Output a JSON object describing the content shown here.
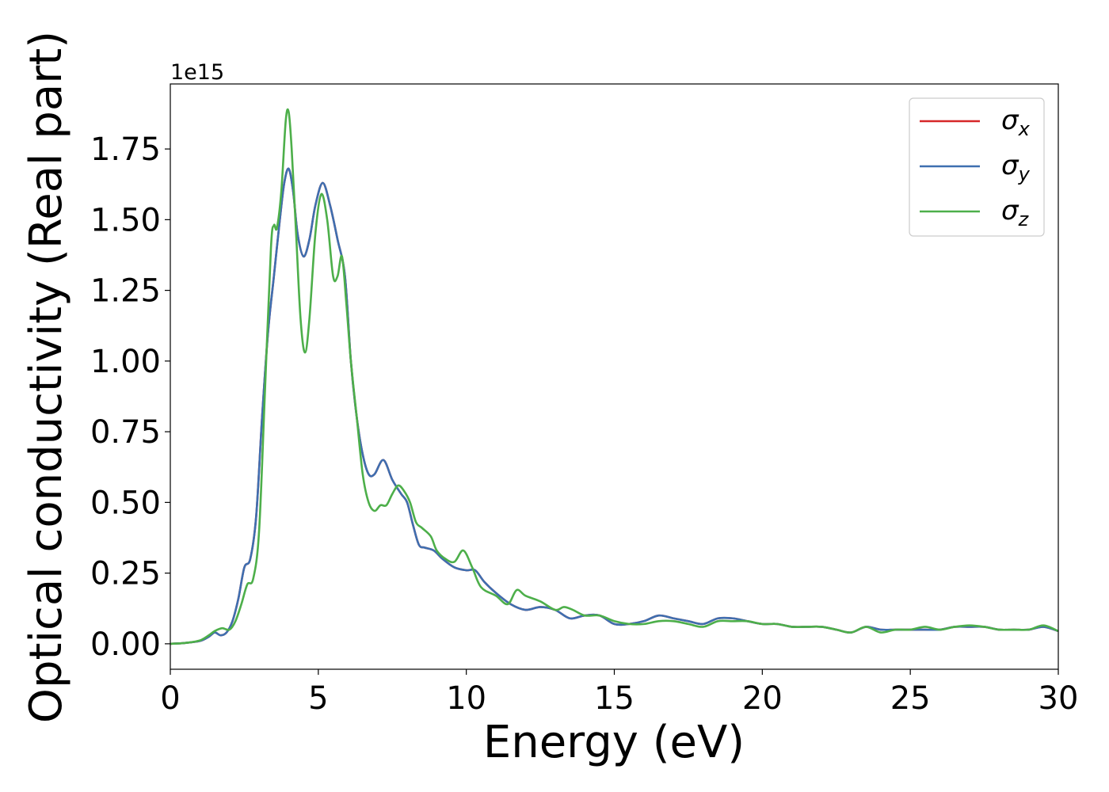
{
  "chart_data": {
    "type": "line",
    "xlabel": "Energy (eV)",
    "ylabel": "Optical conductivity (Real part)",
    "y_offset_label": "1e15",
    "xlim": [
      0,
      30
    ],
    "ylim": [
      -0.09,
      1.98
    ],
    "xticks": [
      0,
      5,
      10,
      15,
      20,
      25,
      30
    ],
    "xtick_labels": [
      "0",
      "5",
      "10",
      "15",
      "20",
      "25",
      "30"
    ],
    "yticks": [
      0,
      0.25,
      0.5,
      0.75,
      1.0,
      1.25,
      1.5,
      1.75
    ],
    "ytick_labels": [
      "0.00",
      "0.25",
      "0.50",
      "0.75",
      "1.00",
      "1.25",
      "1.50",
      "1.75"
    ],
    "grid": false,
    "legend_position": "top-right",
    "series": [
      {
        "name": "σx",
        "legend_symbol": "σ",
        "legend_subscript": "x",
        "color": "#d62728",
        "x": [
          0,
          0.5,
          1.0,
          1.3,
          1.5,
          1.7,
          1.9,
          2.1,
          2.3,
          2.5,
          2.7,
          2.9,
          3.1,
          3.3,
          3.5,
          3.7,
          3.85,
          4.0,
          4.15,
          4.3,
          4.5,
          4.7,
          4.9,
          5.15,
          5.4,
          5.65,
          5.9,
          6.1,
          6.3,
          6.5,
          6.7,
          6.9,
          7.2,
          7.5,
          7.8,
          8.0,
          8.2,
          8.4,
          8.6,
          8.9,
          9.2,
          9.6,
          10.0,
          10.3,
          10.6,
          11.0,
          11.5,
          12.0,
          12.5,
          13.0,
          13.5,
          14.0,
          14.5,
          15.0,
          15.5,
          16.0,
          16.5,
          17.0,
          17.5,
          18.0,
          18.5,
          19.0,
          19.5,
          20.0,
          20.5,
          21.0,
          21.5,
          22.0,
          22.5,
          23.0,
          23.5,
          24.0,
          24.5,
          25.0,
          25.5,
          26.0,
          26.5,
          27.0,
          27.5,
          28.0,
          28.5,
          29.0,
          29.5,
          30.0
        ],
        "values": [
          0.0,
          0.003,
          0.01,
          0.025,
          0.04,
          0.03,
          0.04,
          0.08,
          0.16,
          0.27,
          0.3,
          0.45,
          0.8,
          1.1,
          1.3,
          1.5,
          1.63,
          1.68,
          1.6,
          1.45,
          1.37,
          1.43,
          1.55,
          1.63,
          1.55,
          1.43,
          1.3,
          1.0,
          0.8,
          0.67,
          0.6,
          0.6,
          0.65,
          0.58,
          0.53,
          0.5,
          0.42,
          0.35,
          0.34,
          0.33,
          0.3,
          0.27,
          0.26,
          0.26,
          0.22,
          0.18,
          0.14,
          0.12,
          0.13,
          0.12,
          0.09,
          0.1,
          0.1,
          0.07,
          0.07,
          0.08,
          0.1,
          0.09,
          0.08,
          0.07,
          0.09,
          0.09,
          0.08,
          0.07,
          0.07,
          0.06,
          0.06,
          0.06,
          0.05,
          0.04,
          0.06,
          0.05,
          0.05,
          0.05,
          0.05,
          0.05,
          0.06,
          0.06,
          0.06,
          0.05,
          0.05,
          0.05,
          0.06,
          0.045
        ]
      },
      {
        "name": "σy",
        "legend_symbol": "σ",
        "legend_subscript": "y",
        "color": "#3e6fb0",
        "x": [
          0,
          0.5,
          1.0,
          1.3,
          1.5,
          1.7,
          1.9,
          2.1,
          2.3,
          2.5,
          2.7,
          2.9,
          3.1,
          3.3,
          3.5,
          3.7,
          3.85,
          4.0,
          4.15,
          4.3,
          4.5,
          4.7,
          4.9,
          5.15,
          5.4,
          5.65,
          5.9,
          6.1,
          6.3,
          6.5,
          6.7,
          6.9,
          7.2,
          7.5,
          7.8,
          8.0,
          8.2,
          8.4,
          8.6,
          8.9,
          9.2,
          9.6,
          10.0,
          10.3,
          10.6,
          11.0,
          11.5,
          12.0,
          12.5,
          13.0,
          13.5,
          14.0,
          14.5,
          15.0,
          15.5,
          16.0,
          16.5,
          17.0,
          17.5,
          18.0,
          18.5,
          19.0,
          19.5,
          20.0,
          20.5,
          21.0,
          21.5,
          22.0,
          22.5,
          23.0,
          23.5,
          24.0,
          24.5,
          25.0,
          25.5,
          26.0,
          26.5,
          27.0,
          27.5,
          28.0,
          28.5,
          29.0,
          29.5,
          30.0
        ],
        "values": [
          0.0,
          0.003,
          0.01,
          0.025,
          0.04,
          0.03,
          0.04,
          0.08,
          0.16,
          0.27,
          0.3,
          0.45,
          0.8,
          1.1,
          1.3,
          1.5,
          1.63,
          1.68,
          1.6,
          1.45,
          1.37,
          1.43,
          1.55,
          1.63,
          1.55,
          1.43,
          1.3,
          1.0,
          0.8,
          0.67,
          0.6,
          0.6,
          0.65,
          0.58,
          0.53,
          0.5,
          0.42,
          0.35,
          0.34,
          0.33,
          0.3,
          0.27,
          0.26,
          0.26,
          0.22,
          0.18,
          0.14,
          0.12,
          0.13,
          0.12,
          0.09,
          0.1,
          0.1,
          0.07,
          0.07,
          0.08,
          0.1,
          0.09,
          0.08,
          0.07,
          0.09,
          0.09,
          0.08,
          0.07,
          0.07,
          0.06,
          0.06,
          0.06,
          0.05,
          0.04,
          0.06,
          0.05,
          0.05,
          0.05,
          0.05,
          0.05,
          0.06,
          0.06,
          0.06,
          0.05,
          0.05,
          0.05,
          0.06,
          0.045
        ]
      },
      {
        "name": "σz",
        "legend_symbol": "σ",
        "legend_subscript": "z",
        "color": "#4daf4a",
        "x": [
          0,
          0.5,
          1.0,
          1.3,
          1.5,
          1.75,
          2.0,
          2.2,
          2.4,
          2.6,
          2.8,
          3.0,
          3.2,
          3.4,
          3.5,
          3.6,
          3.75,
          3.9,
          4.0,
          4.1,
          4.25,
          4.4,
          4.55,
          4.7,
          4.9,
          5.1,
          5.3,
          5.5,
          5.65,
          5.8,
          5.95,
          6.1,
          6.3,
          6.5,
          6.7,
          6.9,
          7.1,
          7.3,
          7.5,
          7.7,
          7.9,
          8.1,
          8.3,
          8.5,
          8.8,
          9.0,
          9.3,
          9.6,
          9.9,
          10.2,
          10.5,
          11.0,
          11.4,
          11.7,
          12.0,
          12.5,
          13.0,
          13.3,
          13.6,
          14.0,
          14.5,
          15.0,
          15.5,
          16.0,
          16.5,
          17.0,
          17.5,
          18.0,
          18.5,
          19.0,
          19.5,
          20.0,
          20.5,
          21.0,
          21.5,
          22.0,
          22.5,
          23.0,
          23.5,
          24.0,
          24.5,
          25.0,
          25.5,
          26.0,
          26.5,
          27.0,
          27.5,
          28.0,
          28.5,
          29.0,
          29.5,
          30.0
        ],
        "values": [
          0.0,
          0.003,
          0.012,
          0.03,
          0.045,
          0.055,
          0.05,
          0.08,
          0.14,
          0.21,
          0.23,
          0.4,
          0.9,
          1.4,
          1.48,
          1.47,
          1.6,
          1.85,
          1.88,
          1.75,
          1.45,
          1.15,
          1.03,
          1.15,
          1.45,
          1.59,
          1.5,
          1.3,
          1.3,
          1.37,
          1.2,
          1.0,
          0.8,
          0.6,
          0.5,
          0.47,
          0.49,
          0.49,
          0.53,
          0.56,
          0.54,
          0.5,
          0.43,
          0.41,
          0.38,
          0.33,
          0.3,
          0.29,
          0.33,
          0.27,
          0.2,
          0.17,
          0.14,
          0.19,
          0.17,
          0.15,
          0.12,
          0.13,
          0.12,
          0.1,
          0.1,
          0.08,
          0.07,
          0.07,
          0.08,
          0.08,
          0.07,
          0.06,
          0.08,
          0.08,
          0.08,
          0.07,
          0.07,
          0.06,
          0.06,
          0.06,
          0.05,
          0.04,
          0.06,
          0.04,
          0.05,
          0.05,
          0.06,
          0.05,
          0.06,
          0.065,
          0.06,
          0.05,
          0.05,
          0.05,
          0.065,
          0.045
        ]
      }
    ]
  }
}
